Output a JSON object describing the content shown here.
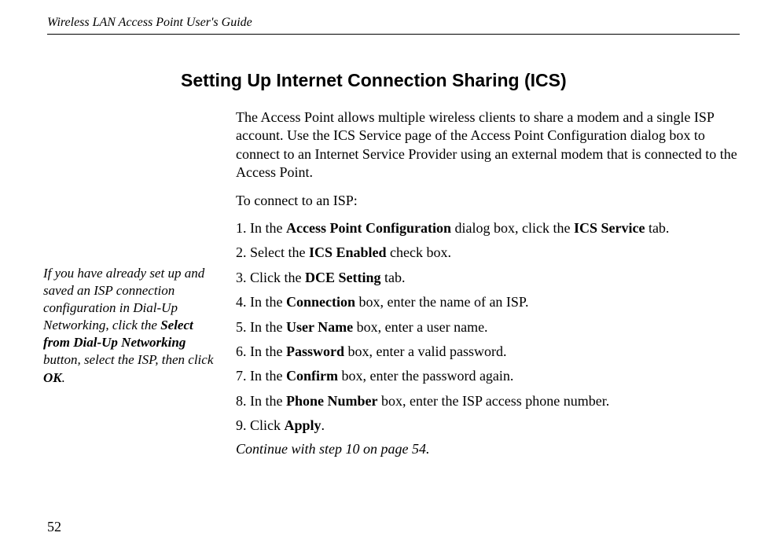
{
  "header": {
    "running_title": "Wireless LAN Access Point User's Guide"
  },
  "sidenote": {
    "text_1": "If you have already set up and saved an ISP connection configuration in Dial-Up Networking, click the ",
    "bold_1": "Select from Dial-Up Networking",
    "text_2": " button, select the ISP, then click ",
    "bold_2": "OK",
    "text_3": "."
  },
  "section": {
    "title": "Setting Up Internet Connection Sharing (ICS)",
    "intro": "The Access Point allows multiple wireless clients to share a modem and a single ISP account. Use the ICS Service page of the Access Point Configuration dialog box to connect to an Internet Service Provider using an external modem that is connected to the Access Point.",
    "lead": "To connect to an ISP:",
    "step1_a": "1. In the ",
    "step1_b": "Access Point Configuration",
    "step1_c": " dialog box, click the ",
    "step1_d": "ICS Service",
    "step1_e": " tab.",
    "step2_a": "2. Select the ",
    "step2_b": "ICS Enabled",
    "step2_c": " check box.",
    "step3_a": "3. Click the ",
    "step3_b": "DCE Setting",
    "step3_c": " tab.",
    "step4_a": "4. In the ",
    "step4_b": "Connection",
    "step4_c": " box, enter the name of an ISP.",
    "step5_a": "5. In the ",
    "step5_b": "User Name",
    "step5_c": " box, enter a user name.",
    "step6_a": "6. In the ",
    "step6_b": "Password",
    "step6_c": " box, enter a valid password.",
    "step7_a": "7. In the ",
    "step7_b": "Confirm",
    "step7_c": " box, enter the password again.",
    "step8_a": "8. In the ",
    "step8_b": "Phone Number",
    "step8_c": " box, enter the ISP access phone number.",
    "step9_a": "9. Click ",
    "step9_b": "Apply",
    "step9_c": ".",
    "continue": "Continue with step 10 on page 54."
  },
  "footer": {
    "page_number": "52"
  }
}
